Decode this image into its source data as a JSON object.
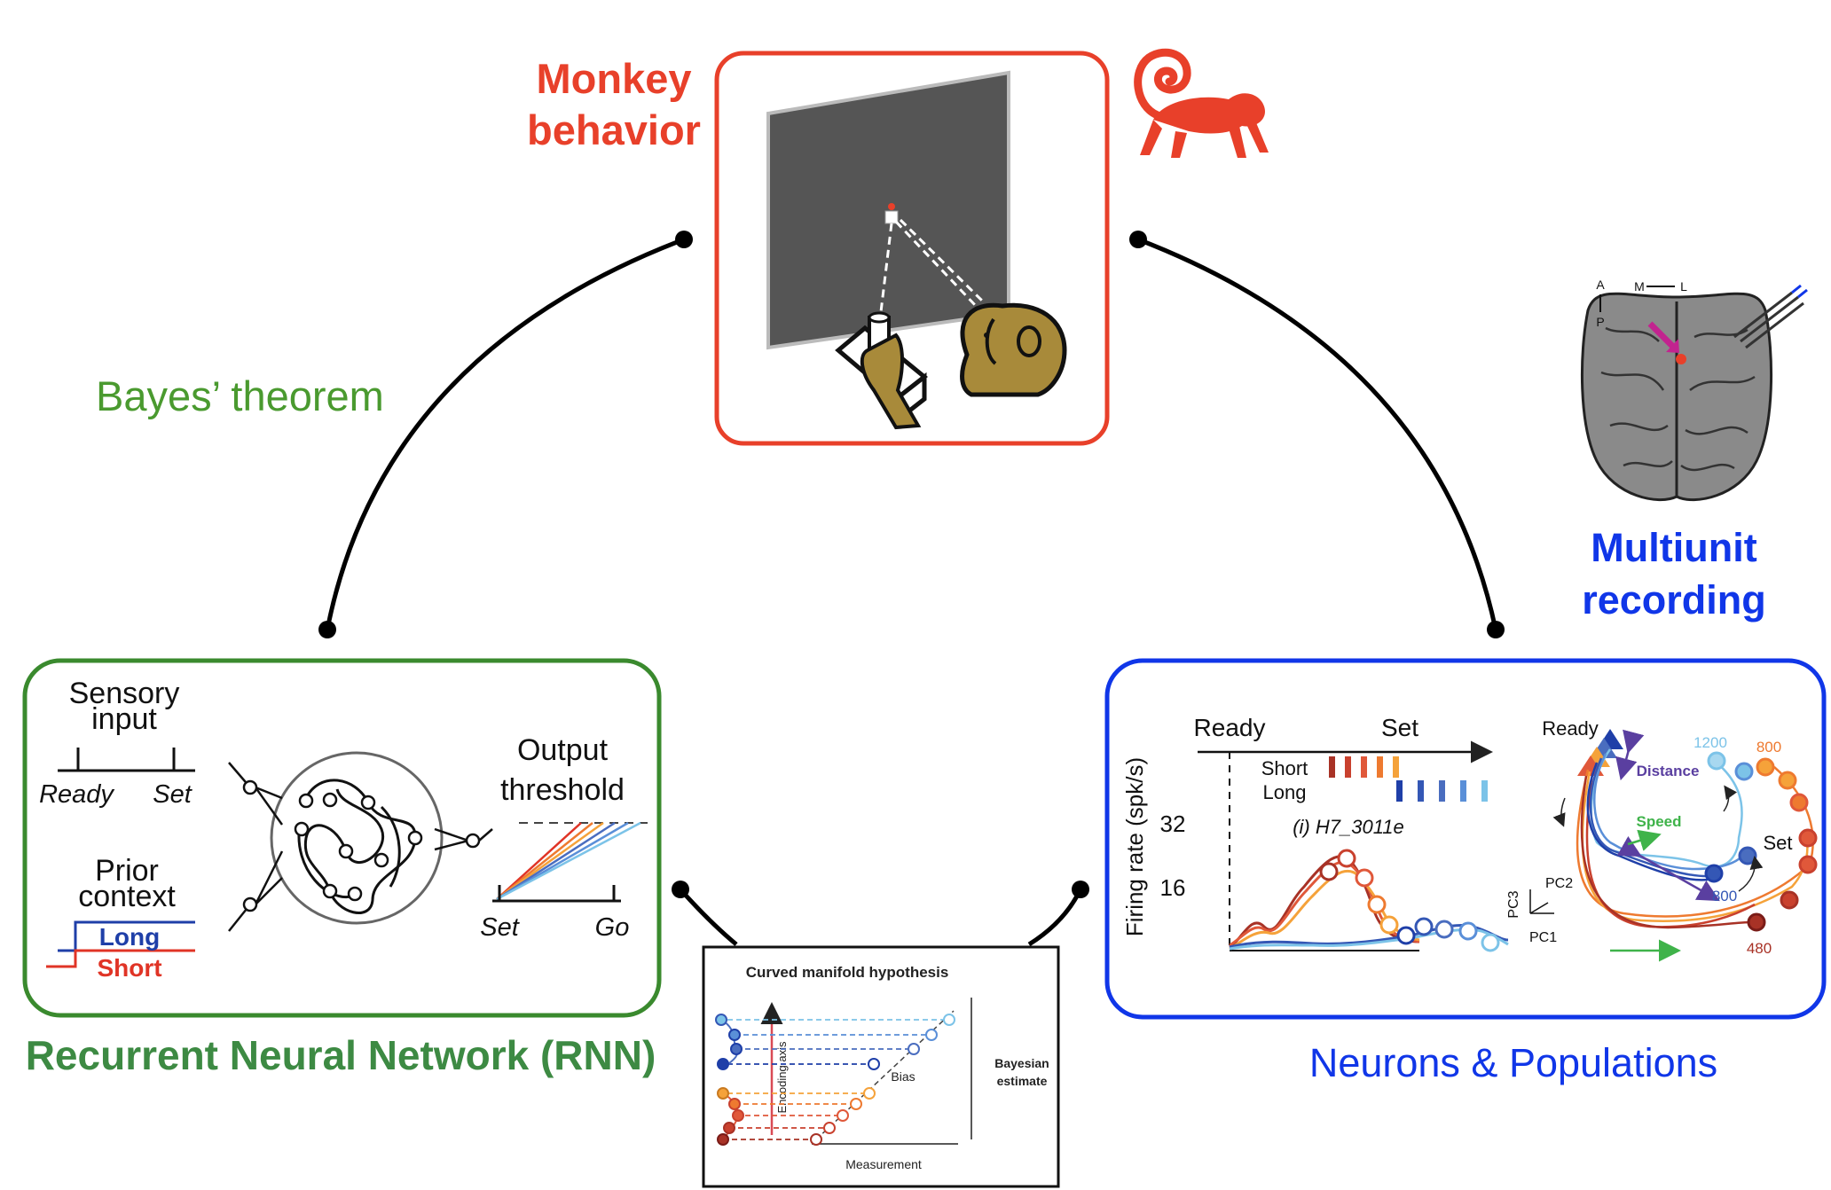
{
  "colors": {
    "behavior": "#e8402a",
    "bayes": "#4a9a2f",
    "rnn_box": "#3a8a2e",
    "rnn_title": "#3d8a43",
    "recording": "#1036e8",
    "short": "#e03426",
    "long": "#1f3fa8",
    "screen": "#555555",
    "monkey_brown": "#a88a3a"
  },
  "behavior": {
    "title_line1": "Monkey",
    "title_line2": "behavior"
  },
  "bayes": {
    "label": "Bayes’ theorem"
  },
  "recording": {
    "title_line1": "Multiunit",
    "title_line2": "recording",
    "brain_axes": {
      "a": "A",
      "p": "P",
      "m": "M",
      "l": "L"
    }
  },
  "rnn": {
    "sensory_line1": "Sensory",
    "sensory_line2": "input",
    "ready": "Ready",
    "set": "Set",
    "prior_line1": "Prior",
    "prior_line2": "context",
    "long": "Long",
    "short": "Short",
    "output_line1": "Output",
    "output_line2": "threshold",
    "out_set": "Set",
    "out_go": "Go",
    "title": "Recurrent Neural Network (RNN)"
  },
  "neurons": {
    "ready": "Ready",
    "set": "Set",
    "short": "Short",
    "long": "Long",
    "cell_id": "(i) H7_3011e",
    "y_axis": "Firing rate (spk/s)",
    "tick_32": "32",
    "tick_16": "16",
    "pop_ready": "Ready",
    "pop_set": "Set",
    "distance": "Distance",
    "speed": "Speed",
    "t1200": "1200",
    "t800a": "800",
    "t800b": "800",
    "t480": "480",
    "pc1": "PC1",
    "pc2": "PC2",
    "pc3": "PC3",
    "title": "Neurons & Populations"
  },
  "manifold": {
    "title": "Curved manifold hypothesis",
    "encoding_axis": "Encoding axis",
    "bias": "Bias",
    "bayes_line1": "Bayesian",
    "bayes_line2": "estimate",
    "measurement": "Measurement"
  }
}
